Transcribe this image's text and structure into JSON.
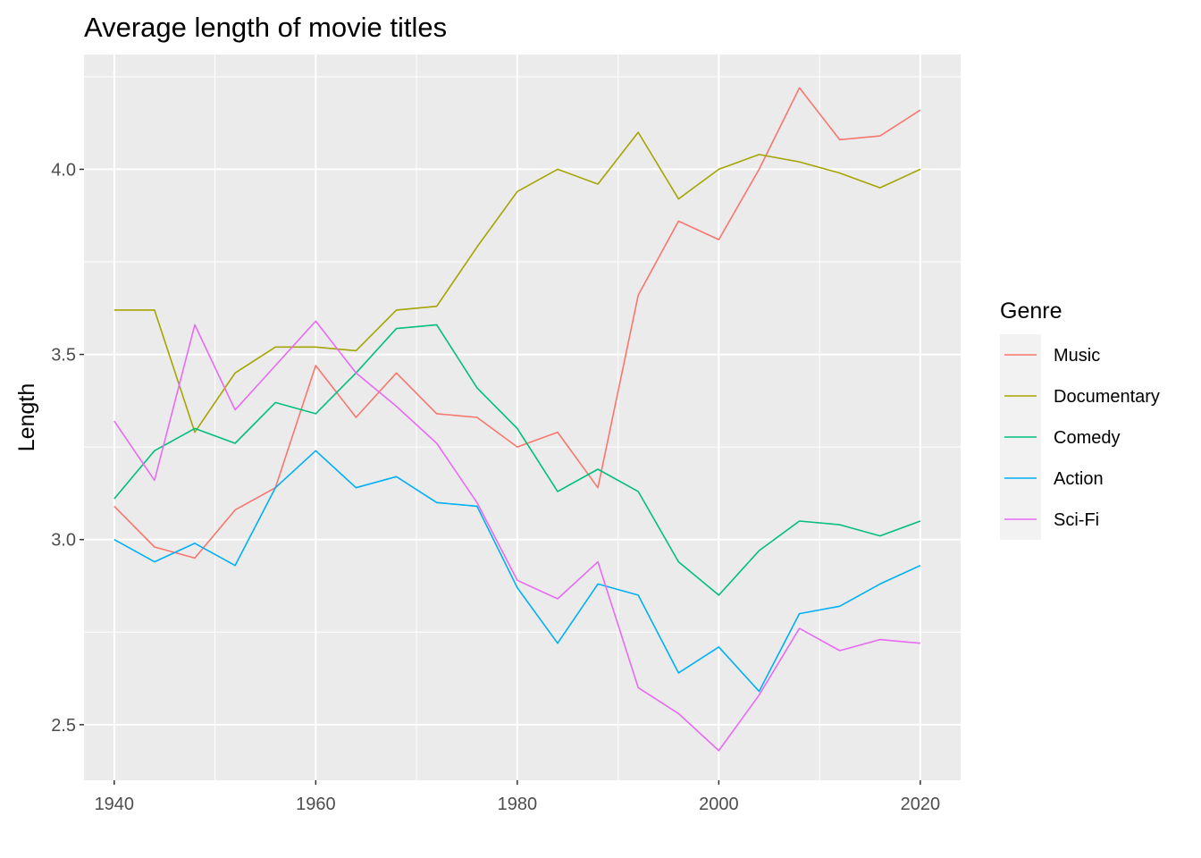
{
  "chart_data": {
    "type": "line",
    "title": "Average length of movie titles",
    "xlabel": "",
    "ylabel": "Length",
    "xlim": [
      1937,
      2024
    ],
    "ylim": [
      2.35,
      4.31
    ],
    "x_ticks": [
      1940,
      1960,
      1980,
      2000,
      2020
    ],
    "x_tick_labels": [
      "1940",
      "1960",
      "1980",
      "2000",
      "2020"
    ],
    "y_ticks": [
      2.5,
      3.0,
      3.5,
      4.0
    ],
    "y_tick_labels": [
      "2.5",
      "3.0",
      "3.5",
      "4.0"
    ],
    "grid": true,
    "legend": {
      "title": "Genre",
      "position": "right"
    },
    "x": [
      1940,
      1944,
      1948,
      1952,
      1956,
      1960,
      1964,
      1968,
      1972,
      1976,
      1980,
      1984,
      1988,
      1992,
      1996,
      2000,
      2004,
      2008,
      2012,
      2016,
      2020
    ],
    "series": [
      {
        "name": "Music",
        "color": "#F8766D",
        "values": [
          3.09,
          2.98,
          2.95,
          3.08,
          3.14,
          3.47,
          3.33,
          3.45,
          3.34,
          3.33,
          3.25,
          3.29,
          3.14,
          3.66,
          3.86,
          3.81,
          4.0,
          4.22,
          4.08,
          4.09,
          4.16
        ]
      },
      {
        "name": "Documentary",
        "color": "#A3A500",
        "values": [
          3.62,
          3.62,
          3.29,
          3.45,
          3.52,
          3.52,
          3.51,
          3.62,
          3.63,
          3.79,
          3.94,
          4.0,
          3.96,
          4.1,
          3.92,
          4.0,
          4.04,
          4.02,
          3.99,
          3.95,
          4.0
        ]
      },
      {
        "name": "Comedy",
        "color": "#00BF7D",
        "values": [
          3.11,
          3.24,
          3.3,
          3.26,
          3.37,
          3.34,
          3.45,
          3.57,
          3.58,
          3.41,
          3.3,
          3.13,
          3.19,
          3.13,
          2.94,
          2.85,
          2.97,
          3.05,
          3.04,
          3.01,
          3.05
        ]
      },
      {
        "name": "Action",
        "color": "#00B0F6",
        "values": [
          3.0,
          2.94,
          2.99,
          2.93,
          3.14,
          3.24,
          3.14,
          3.17,
          3.1,
          3.09,
          2.87,
          2.72,
          2.88,
          2.85,
          2.64,
          2.71,
          2.59,
          2.8,
          2.82,
          2.88,
          2.93
        ]
      },
      {
        "name": "Sci-Fi",
        "color": "#E76BF3",
        "values": [
          3.32,
          3.16,
          3.58,
          3.35,
          3.47,
          3.59,
          3.45,
          3.36,
          3.26,
          3.1,
          2.89,
          2.84,
          2.94,
          2.6,
          2.53,
          2.43,
          2.58,
          2.76,
          2.7,
          2.73,
          2.72
        ]
      }
    ]
  }
}
